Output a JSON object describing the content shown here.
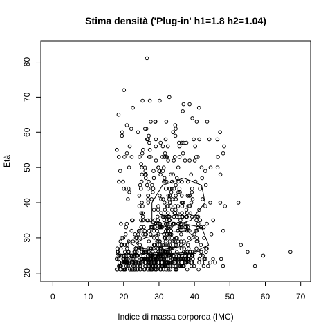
{
  "chart_data": {
    "type": "scatter",
    "title": "Stima densità ('Plug-in' h1=1.8 h2=1.04)",
    "xlabel": "Indice di massa corporea (IMC)",
    "ylabel": "Età",
    "xlim": [
      -3.4,
      72.8
    ],
    "ylim": [
      17.6,
      86.0
    ],
    "xticks": [
      0,
      10,
      20,
      30,
      40,
      50,
      60,
      70
    ],
    "yticks": [
      20,
      30,
      40,
      50,
      60,
      70,
      80
    ],
    "grid": false,
    "marker": "open-circle",
    "overlay": "density contour lines",
    "outliers": [
      {
        "x": 26.6,
        "y": 81
      },
      {
        "x": 20.1,
        "y": 72
      },
      {
        "x": 32.9,
        "y": 70
      },
      {
        "x": 27.4,
        "y": 69
      },
      {
        "x": 36.9,
        "y": 68
      },
      {
        "x": 22.6,
        "y": 67
      },
      {
        "x": 46.5,
        "y": 58
      },
      {
        "x": 52.4,
        "y": 40
      },
      {
        "x": 57.1,
        "y": 22
      },
      {
        "x": 59.4,
        "y": 25
      },
      {
        "x": 67.1,
        "y": 26
      },
      {
        "x": 55.0,
        "y": 26
      },
      {
        "x": 53.1,
        "y": 28
      },
      {
        "x": 18.2,
        "y": 27
      },
      {
        "x": 19.6,
        "y": 60
      }
    ],
    "clusters": [
      {
        "cx": 29,
        "cy": 23.5,
        "sx": 7,
        "sy": 1.8,
        "n": 330,
        "ymin": 21,
        "ymax": 29
      },
      {
        "cx": 31,
        "cy": 30,
        "sx": 6.5,
        "sy": 4,
        "n": 190
      },
      {
        "cx": 32,
        "cy": 41,
        "sx": 6,
        "sy": 6,
        "n": 150
      },
      {
        "cx": 32,
        "cy": 55,
        "sx": 7,
        "sy": 6,
        "n": 90
      }
    ],
    "contours": [
      [
        [
          25,
          27
        ],
        [
          30,
          26.5
        ],
        [
          36,
          27.5
        ],
        [
          40,
          30
        ],
        [
          38,
          32
        ],
        [
          32,
          31.5
        ],
        [
          26,
          30
        ],
        [
          23.5,
          28.5
        ],
        [
          25,
          27
        ]
      ],
      [
        [
          28,
          34
        ],
        [
          33,
          33
        ],
        [
          39,
          35
        ],
        [
          43,
          40
        ],
        [
          42,
          45
        ],
        [
          37,
          47
        ],
        [
          31,
          45
        ],
        [
          28,
          40
        ],
        [
          28,
          34
        ]
      ],
      [
        [
          21,
          29
        ],
        [
          26,
          26
        ],
        [
          33,
          25.5
        ],
        [
          40,
          26
        ],
        [
          44,
          28
        ],
        [
          42,
          33
        ],
        [
          37,
          34
        ]
      ],
      [
        [
          21,
          25.5
        ],
        [
          30,
          25
        ],
        [
          39,
          25.5
        ],
        [
          42,
          26.5
        ]
      ]
    ]
  }
}
